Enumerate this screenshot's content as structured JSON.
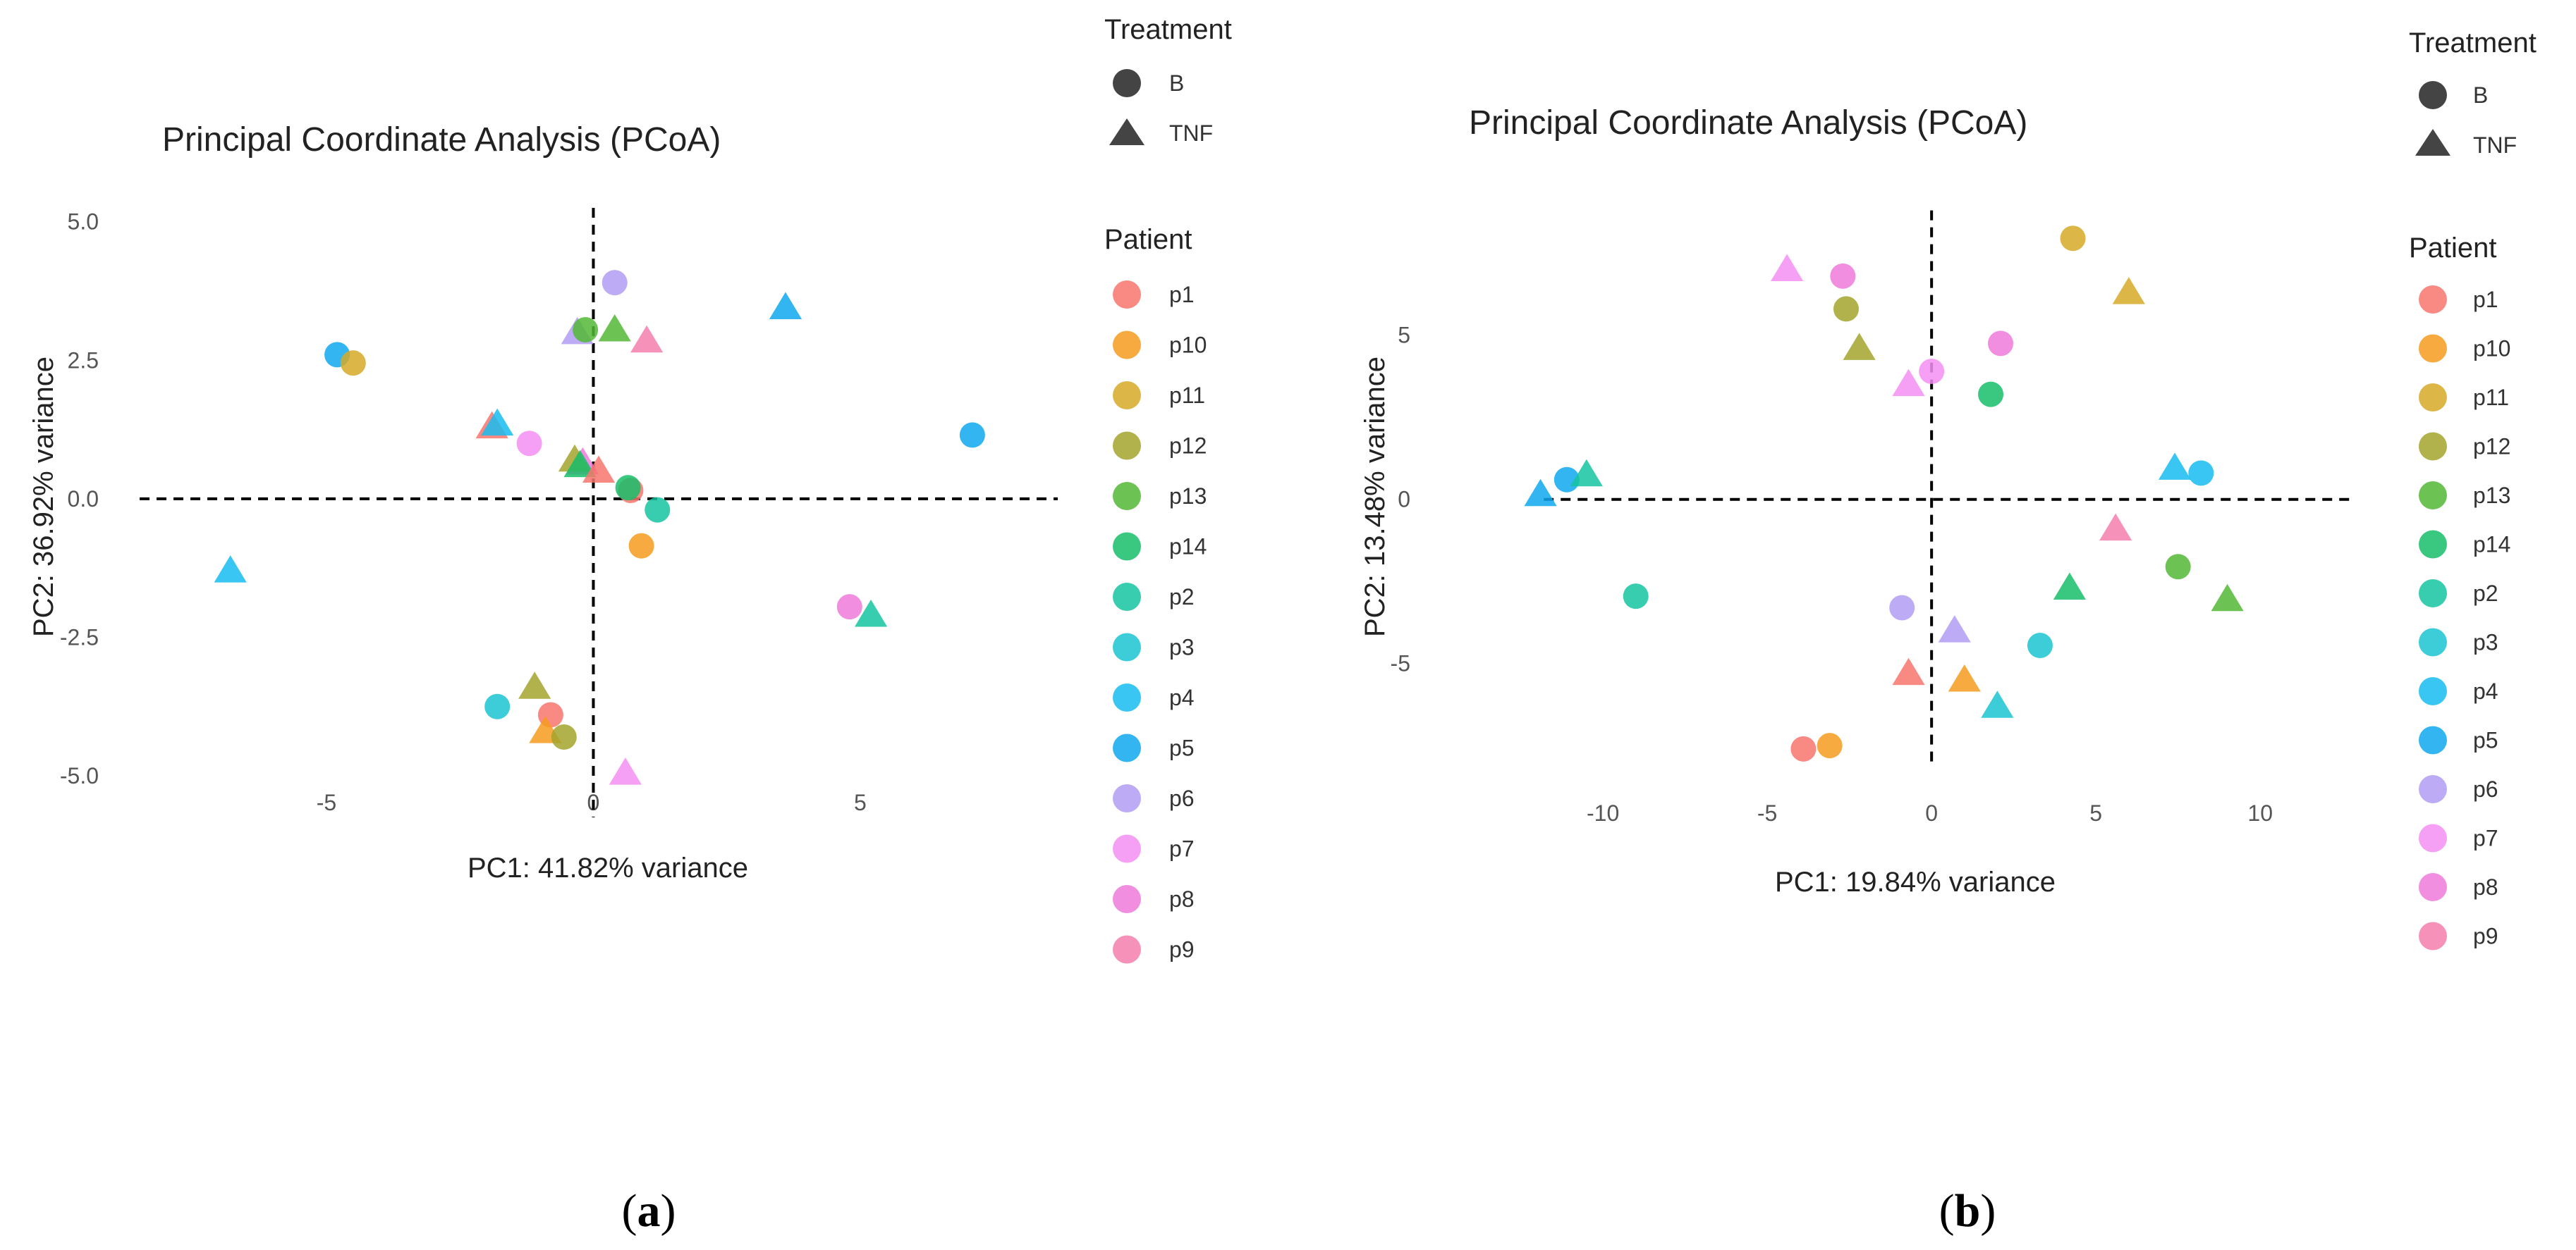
{
  "chart_data": [
    {
      "type": "scatter",
      "panel_label": "a",
      "title": "Principal Coordinate Analysis (PCoA)",
      "xlabel": "PC1: 41.82% variance",
      "ylabel": "PC2: 36.92% variance",
      "xlim": [
        -8.5,
        8.7
      ],
      "ylim": [
        -5.75,
        5.25
      ],
      "xticks": [
        -5,
        0,
        5
      ],
      "xtick_labels": [
        "-5",
        "0",
        "5"
      ],
      "yticks": [
        5.0,
        2.5,
        0.0,
        -2.5,
        -5.0
      ],
      "ytick_labels": [
        "5.0",
        "2.5",
        "0.0",
        "-2.5",
        "-5.0"
      ],
      "reference_lines": {
        "x": 0,
        "y": 0
      },
      "points": [
        {
          "patient": "p5",
          "treatment": "B",
          "x": -4.8,
          "y": 2.6
        },
        {
          "patient": "p11",
          "treatment": "B",
          "x": -4.5,
          "y": 2.45
        },
        {
          "patient": "p4",
          "treatment": "TNF",
          "x": -6.8,
          "y": -1.3
        },
        {
          "patient": "p1",
          "treatment": "TNF",
          "x": -1.9,
          "y": 1.3
        },
        {
          "patient": "p4",
          "treatment": "TNF",
          "x": -1.8,
          "y": 1.35
        },
        {
          "patient": "p7",
          "treatment": "B",
          "x": -1.2,
          "y": 1.0
        },
        {
          "patient": "p6",
          "treatment": "TNF",
          "x": -0.3,
          "y": 3.0
        },
        {
          "patient": "p13",
          "treatment": "B",
          "x": -0.15,
          "y": 3.05
        },
        {
          "patient": "p6",
          "treatment": "B",
          "x": 0.4,
          "y": 3.9
        },
        {
          "patient": "p13",
          "treatment": "TNF",
          "x": 0.4,
          "y": 3.05
        },
        {
          "patient": "p9",
          "treatment": "TNF",
          "x": 1.0,
          "y": 2.85
        },
        {
          "patient": "p5",
          "treatment": "TNF",
          "x": 3.6,
          "y": 3.45
        },
        {
          "patient": "p5",
          "treatment": "B",
          "x": 7.1,
          "y": 1.15
        },
        {
          "patient": "p8",
          "treatment": "TNF",
          "x": -0.2,
          "y": 0.65
        },
        {
          "patient": "p12",
          "treatment": "TNF",
          "x": -0.35,
          "y": 0.7
        },
        {
          "patient": "p14",
          "treatment": "TNF",
          "x": -0.25,
          "y": 0.6
        },
        {
          "patient": "p1",
          "treatment": "TNF",
          "x": 0.1,
          "y": 0.5
        },
        {
          "patient": "p1",
          "treatment": "B",
          "x": 0.7,
          "y": 0.15
        },
        {
          "patient": "p14",
          "treatment": "B",
          "x": 0.65,
          "y": 0.2
        },
        {
          "patient": "p2",
          "treatment": "B",
          "x": 1.2,
          "y": -0.2
        },
        {
          "patient": "p10",
          "treatment": "B",
          "x": 0.9,
          "y": -0.85
        },
        {
          "patient": "p8",
          "treatment": "B",
          "x": 4.8,
          "y": -1.95
        },
        {
          "patient": "p2",
          "treatment": "TNF",
          "x": 5.2,
          "y": -2.1
        },
        {
          "patient": "p3",
          "treatment": "B",
          "x": -1.8,
          "y": -3.75
        },
        {
          "patient": "p12",
          "treatment": "TNF",
          "x": -1.1,
          "y": -3.4
        },
        {
          "patient": "p1",
          "treatment": "B",
          "x": -0.8,
          "y": -3.9
        },
        {
          "patient": "p10",
          "treatment": "TNF",
          "x": -0.9,
          "y": -4.2
        },
        {
          "patient": "p12",
          "treatment": "B",
          "x": -0.55,
          "y": -4.3
        },
        {
          "patient": "p7",
          "treatment": "TNF",
          "x": 0.6,
          "y": -4.95
        }
      ]
    },
    {
      "type": "scatter",
      "panel_label": "b",
      "title": "Principal Coordinate Analysis (PCoA)",
      "xlabel": "PC1: 19.84% variance",
      "ylabel": "PC2: 13.48% variance",
      "xlim": [
        -13.5,
        13.0
      ],
      "ylim": [
        -9.9,
        9.2
      ],
      "xticks": [
        -10,
        -5,
        0,
        5,
        10
      ],
      "xtick_labels": [
        "-10",
        "-5",
        "0",
        "5",
        "10"
      ],
      "yticks": [
        5,
        0,
        -5
      ],
      "ytick_labels": [
        "5",
        "0",
        "-5"
      ],
      "reference_lines": {
        "x": 0,
        "y": 0
      },
      "points": [
        {
          "patient": "p5",
          "treatment": "TNF",
          "x": -11.9,
          "y": 0.15
        },
        {
          "patient": "p5",
          "treatment": "B",
          "x": -11.1,
          "y": 0.6
        },
        {
          "patient": "p2",
          "treatment": "TNF",
          "x": -10.5,
          "y": 0.75
        },
        {
          "patient": "p2",
          "treatment": "B",
          "x": -9.0,
          "y": -2.95
        },
        {
          "patient": "p7",
          "treatment": "TNF",
          "x": -4.4,
          "y": 7.0
        },
        {
          "patient": "p8",
          "treatment": "B",
          "x": -2.7,
          "y": 6.8
        },
        {
          "patient": "p12",
          "treatment": "B",
          "x": -2.6,
          "y": 5.8
        },
        {
          "patient": "p12",
          "treatment": "TNF",
          "x": -2.2,
          "y": 4.6
        },
        {
          "patient": "p7",
          "treatment": "TNF",
          "x": -0.7,
          "y": 3.5
        },
        {
          "patient": "p7",
          "treatment": "B",
          "x": 0.0,
          "y": 3.9
        },
        {
          "patient": "p14",
          "treatment": "B",
          "x": 1.8,
          "y": 3.2
        },
        {
          "patient": "p8",
          "treatment": "B",
          "x": 2.1,
          "y": 4.75
        },
        {
          "patient": "p11",
          "treatment": "B",
          "x": 4.3,
          "y": 7.95
        },
        {
          "patient": "p11",
          "treatment": "TNF",
          "x": 6.0,
          "y": 6.3
        },
        {
          "patient": "p4",
          "treatment": "TNF",
          "x": 7.4,
          "y": 0.95
        },
        {
          "patient": "p4",
          "treatment": "B",
          "x": 8.2,
          "y": 0.8
        },
        {
          "patient": "p9",
          "treatment": "TNF",
          "x": 5.6,
          "y": -0.9
        },
        {
          "patient": "p13",
          "treatment": "B",
          "x": 7.5,
          "y": -2.05
        },
        {
          "patient": "p14",
          "treatment": "TNF",
          "x": 4.2,
          "y": -2.7
        },
        {
          "patient": "p13",
          "treatment": "TNF",
          "x": 9.0,
          "y": -3.05
        },
        {
          "patient": "p6",
          "treatment": "B",
          "x": -0.9,
          "y": -3.3
        },
        {
          "patient": "p6",
          "treatment": "TNF",
          "x": 0.7,
          "y": -4.0
        },
        {
          "patient": "p3",
          "treatment": "B",
          "x": 3.3,
          "y": -4.45
        },
        {
          "patient": "p1",
          "treatment": "TNF",
          "x": -0.7,
          "y": -5.3
        },
        {
          "patient": "p10",
          "treatment": "TNF",
          "x": 1.0,
          "y": -5.5
        },
        {
          "patient": "p3",
          "treatment": "TNF",
          "x": 2.0,
          "y": -6.3
        },
        {
          "patient": "p1",
          "treatment": "B",
          "x": -3.9,
          "y": -7.6
        },
        {
          "patient": "p10",
          "treatment": "B",
          "x": -3.1,
          "y": -7.5
        }
      ]
    }
  ],
  "legend": {
    "treatment_title": "Treatment",
    "treatments": [
      {
        "label": "B",
        "shape": "circle"
      },
      {
        "label": "TNF",
        "shape": "triangle"
      }
    ],
    "patient_title": "Patient",
    "patients": [
      {
        "label": "p1",
        "color": "#F8766D"
      },
      {
        "label": "p10",
        "color": "#F59B1F"
      },
      {
        "label": "p11",
        "color": "#D6AA28"
      },
      {
        "label": "p12",
        "color": "#A3A52B"
      },
      {
        "label": "p13",
        "color": "#52B935"
      },
      {
        "label": "p14",
        "color": "#17BD6A"
      },
      {
        "label": "p2",
        "color": "#14C4A0"
      },
      {
        "label": "p3",
        "color": "#1AC4D2"
      },
      {
        "label": "p4",
        "color": "#17BCF0"
      },
      {
        "label": "p5",
        "color": "#0EA8EF"
      },
      {
        "label": "p6",
        "color": "#B39CF4"
      },
      {
        "label": "p7",
        "color": "#F58FF3"
      },
      {
        "label": "p8",
        "color": "#EE7AD9"
      },
      {
        "label": "p9",
        "color": "#F57FAE"
      }
    ]
  }
}
